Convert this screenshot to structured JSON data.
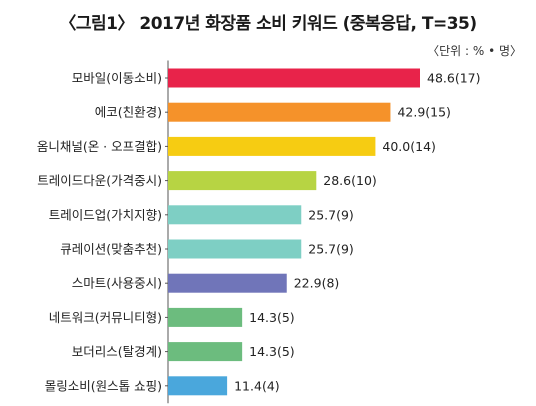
{
  "chart_data": {
    "type": "bar",
    "orientation": "horizontal",
    "title": "〈그림1〉 2017년 화장품 소비 키워드 (중복응답, T=35)",
    "unit_note": "〈단위 : % • 명〉",
    "categories": [
      "모바일(이동소비)",
      "에코(친환경)",
      "옴니채널(온 · 오프결합)",
      "트레이드다운(가격중시)",
      "트레이드업(가치지향)",
      "큐레이션(맞춤추천)",
      "스마트(사용중시)",
      "네트워크(커뮤니티형)",
      "보더리스(탈경계)",
      "몰링소비(원스톱 쇼핑)"
    ],
    "values": [
      48.6,
      42.9,
      40.0,
      28.6,
      25.7,
      25.7,
      22.9,
      14.3,
      14.3,
      11.4
    ],
    "counts": [
      17,
      15,
      14,
      10,
      9,
      9,
      8,
      5,
      5,
      4
    ],
    "value_labels": [
      "48.6(17)",
      "42.9(15)",
      "40.0(14)",
      "28.6(10)",
      "25.7(9)",
      "25.7(9)",
      "22.9(8)",
      "14.3(5)",
      "14.3(5)",
      "11.4(4)"
    ],
    "colors": [
      "#e8234a",
      "#f5922a",
      "#f6cc12",
      "#b7d443",
      "#7ecfc4",
      "#7ecfc4",
      "#7075b9",
      "#6cbc7e",
      "#6cbc7e",
      "#4aa7dc"
    ],
    "xlim": [
      0,
      50
    ],
    "grid": false,
    "legend": "none",
    "xlabel": "",
    "ylabel": ""
  }
}
